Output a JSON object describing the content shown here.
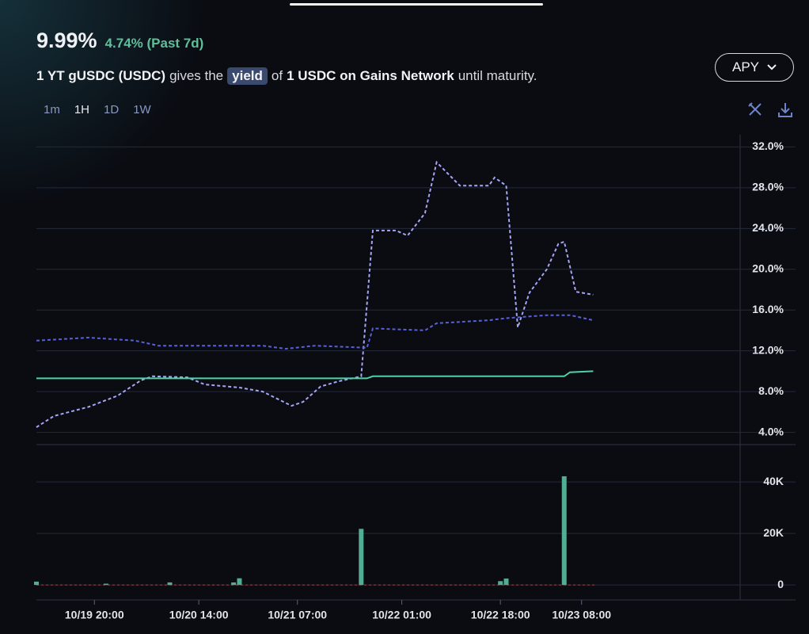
{
  "header": {
    "value": "9.99%",
    "change": "4.74% (Past 7d)"
  },
  "description": {
    "asset": "1 YT gUSDC (USDC)",
    "text1": "gives the",
    "badge": "yield",
    "text2": "of",
    "target": "1 USDC on Gains Network",
    "text3": "until maturity."
  },
  "button": {
    "label": "APY"
  },
  "timeframes": [
    "1m",
    "1H",
    "1D",
    "1W"
  ],
  "chart_data": [
    {
      "type": "line",
      "xlim": [
        "10/19 10:00",
        "10/24 11:20"
      ],
      "ylim": [
        2.8,
        33.2
      ],
      "yticks": [
        {
          "value": 4,
          "label": "4.0%"
        },
        {
          "value": 8,
          "label": "8.0%"
        },
        {
          "value": 12,
          "label": "12.0%"
        },
        {
          "value": 16,
          "label": "16.0%"
        },
        {
          "value": 20,
          "label": "20.0%"
        },
        {
          "value": 24,
          "label": "24.0%"
        },
        {
          "value": 28,
          "label": "28.0%"
        },
        {
          "value": 32,
          "label": "32.0%"
        }
      ],
      "grid": true,
      "series": [
        {
          "color": "#a3a6f5",
          "dashed": true,
          "x": [
            "10/19 10:00",
            "10/19 13:00",
            "10/19 19:00",
            "10/20 00:00",
            "10/20 04:00",
            "10/20 06:00",
            "10/20 12:00",
            "10/20 15:00",
            "10/20 21:00",
            "10/21 01:00",
            "10/21 06:00",
            "10/21 08:00",
            "10/21 11:00",
            "10/21 14:00",
            "10/21 18:00",
            "10/21 20:00",
            "10/22 00:00",
            "10/22 02:00",
            "10/22 05:00",
            "10/22 07:00",
            "10/22 11:00",
            "10/22 16:00",
            "10/22 17:00",
            "10/22 19:00",
            "10/22 21:00",
            "10/22 23:00",
            "10/23 02:00",
            "10/23 04:00",
            "10/23 05:00",
            "10/23 07:00",
            "10/23 10:00"
          ],
          "values": [
            4.5,
            5.6,
            6.5,
            7.6,
            9.1,
            9.5,
            9.4,
            8.7,
            8.4,
            8.0,
            6.6,
            7.0,
            8.5,
            9.0,
            9.5,
            23.8,
            23.8,
            23.3,
            25.5,
            30.5,
            28.2,
            28.2,
            29.0,
            28.2,
            14.3,
            17.7,
            20.0,
            22.5,
            22.7,
            17.8,
            17.5
          ]
        },
        {
          "color": "#5a5fdc",
          "dashed": true,
          "x": [
            "10/19 10:00",
            "10/19 19:00",
            "10/20 03:00",
            "10/20 07:00",
            "10/21 01:00",
            "10/21 05:00",
            "10/21 10:00",
            "10/21 19:00",
            "10/21 20:00",
            "10/22 05:00",
            "10/22 07:00",
            "10/22 16:00",
            "10/22 19:00",
            "10/23 02:00",
            "10/23 06:00",
            "10/23 10:00"
          ],
          "values": [
            13.0,
            13.3,
            13.0,
            12.5,
            12.5,
            12.2,
            12.5,
            12.3,
            14.2,
            14.0,
            14.7,
            15.0,
            15.2,
            15.5,
            15.5,
            15.0
          ]
        },
        {
          "color": "#4fd1a5",
          "dashed": false,
          "x": [
            "10/19 10:00",
            "10/21 19:00",
            "10/21 20:00",
            "10/23 05:00",
            "10/23 06:00",
            "10/23 10:00"
          ],
          "values": [
            9.3,
            9.3,
            9.5,
            9.5,
            9.9,
            10.0
          ]
        }
      ]
    },
    {
      "type": "bar",
      "xlim": [
        "10/19 10:00",
        "10/24 11:20"
      ],
      "ylim": [
        -5800,
        54500
      ],
      "yticks": [
        0,
        {
          "value": 20000,
          "label": "20K"
        },
        {
          "value": 40000,
          "label": "40K"
        }
      ],
      "xticks": [
        "10/19 20:00",
        "10/20 14:00",
        "10/21 07:00",
        "10/22 01:00",
        "10/22 18:00",
        "10/23 08:00"
      ],
      "color": "#4fae93",
      "x": [
        "10/19 10:00",
        "10/19 22:00",
        "10/20 09:00",
        "10/20 20:00",
        "10/20 21:00",
        "10/21 18:00",
        "10/22 18:00",
        "10/22 19:00",
        "10/23 05:00"
      ],
      "values": [
        1300,
        500,
        1000,
        1000,
        2600,
        21800,
        1500,
        2500,
        42200
      ]
    }
  ]
}
